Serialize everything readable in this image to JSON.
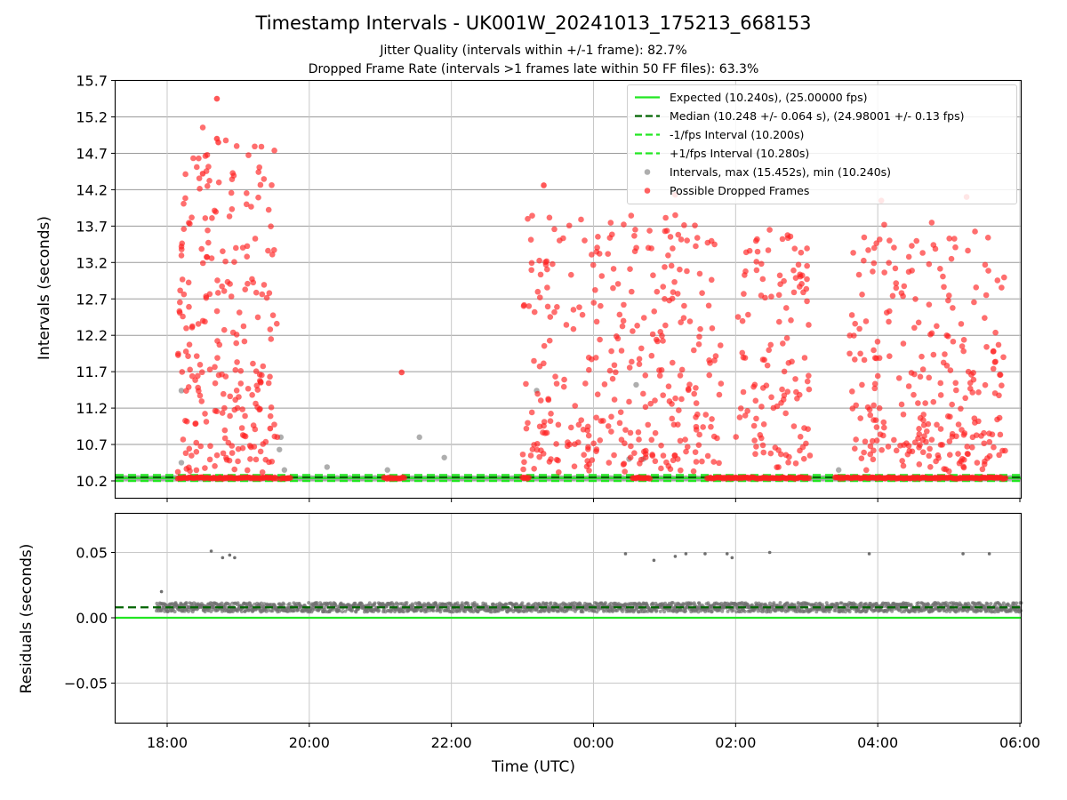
{
  "title": "Timestamp Intervals - UK001W_20241013_175213_668153",
  "subtitle_jitter": "Jitter Quality (intervals within +/-1 frame): 82.7%",
  "subtitle_dropped": "Dropped Frame Rate (intervals >1 frames late within 50 FF files): 63.3%",
  "colors": {
    "expected": "#00ee00",
    "median": "#006400",
    "intervals": "#a0a0a0",
    "dropped": "#ff2020",
    "residuals": "#707070"
  },
  "legend": [
    {
      "label": "Expected (10.240s), (25.00000 fps)",
      "style": "solid-line",
      "color": "#22e622"
    },
    {
      "label": "Median (10.248 +/- 0.064 s), (24.98001 +/- 0.13 fps)",
      "style": "dashed-line",
      "color": "#006400"
    },
    {
      "label": "-1/fps Interval (10.200s)",
      "style": "dashed-line",
      "color": "#22e622"
    },
    {
      "label": "+1/fps Interval (10.280s)",
      "style": "dashed-line",
      "color": "#22e622"
    },
    {
      "label": "Intervals, max (15.452s), min (10.240s)",
      "style": "marker",
      "color": "#a0a0a0"
    },
    {
      "label": "Possible Dropped Frames",
      "style": "marker",
      "color": "#ff2020"
    }
  ],
  "chart_data": [
    {
      "type": "scatter",
      "panel": "top",
      "title": "Timestamp Intervals - UK001W_20241013_175213_668153",
      "xlabel": "",
      "ylabel": "Intervals (seconds)",
      "ylim": [
        10.0,
        15.7
      ],
      "yticks": [
        10.2,
        10.7,
        11.2,
        11.7,
        12.2,
        12.7,
        13.2,
        13.7,
        14.2,
        14.7,
        15.2,
        15.7
      ],
      "ytick_labels": [
        "10.2",
        "10.7",
        "11.2",
        "11.7",
        "12.2",
        "12.7",
        "13.2",
        "13.7",
        "14.2",
        "14.7",
        "15.2",
        "15.7"
      ],
      "xlim_hours": [
        17.27,
        30.02
      ],
      "grid": true,
      "legend_position": "top-right",
      "reference_lines": {
        "expected": 10.24,
        "median": 10.248,
        "minus_1_fps": 10.2,
        "plus_1_fps": 10.28
      },
      "stats": {
        "max_interval": 15.452,
        "min_interval": 10.24
      },
      "clusters": [
        {
          "start": 18.15,
          "end": 19.55,
          "ymin": 10.3,
          "ymax": 15.45,
          "count": 240
        },
        {
          "start": 23.0,
          "end": 25.8,
          "ymin": 10.3,
          "ymax": 14.3,
          "count": 320
        },
        {
          "start": 26.0,
          "end": 27.05,
          "ymin": 10.3,
          "ymax": 14.1,
          "count": 120
        },
        {
          "start": 27.6,
          "end": 29.8,
          "ymin": 10.3,
          "ymax": 14.1,
          "count": 260
        }
      ],
      "baseline_dropped_bands": [
        [
          18.15,
          19.55
        ],
        [
          19.6,
          19.75
        ],
        [
          21.05,
          21.35
        ],
        [
          23.0,
          23.1
        ],
        [
          24.55,
          24.8
        ],
        [
          25.6,
          27.05
        ],
        [
          27.4,
          29.8
        ]
      ],
      "isolated_dropped": [
        {
          "x": 21.3,
          "y": 11.69
        },
        {
          "x": 19.45,
          "y": 10.92
        },
        {
          "x": 18.7,
          "y": 15.45
        },
        {
          "x": 18.7,
          "y": 14.9
        },
        {
          "x": 18.72,
          "y": 14.85
        },
        {
          "x": 18.5,
          "y": 14.42
        },
        {
          "x": 23.3,
          "y": 14.26
        },
        {
          "x": 25.15,
          "y": 14.13
        },
        {
          "x": 28.05,
          "y": 14.05
        },
        {
          "x": 29.25,
          "y": 14.1
        }
      ],
      "gray_points": [
        {
          "x": 18.2,
          "y": 11.44
        },
        {
          "x": 18.2,
          "y": 10.45
        },
        {
          "x": 19.6,
          "y": 10.8
        },
        {
          "x": 19.65,
          "y": 10.35
        },
        {
          "x": 19.58,
          "y": 10.63
        },
        {
          "x": 20.25,
          "y": 10.39
        },
        {
          "x": 21.1,
          "y": 10.35
        },
        {
          "x": 21.55,
          "y": 10.8
        },
        {
          "x": 21.9,
          "y": 10.52
        },
        {
          "x": 23.2,
          "y": 11.44
        },
        {
          "x": 24.6,
          "y": 11.52
        },
        {
          "x": 24.7,
          "y": 10.5
        },
        {
          "x": 24.5,
          "y": 10.5
        },
        {
          "x": 27.45,
          "y": 10.35
        }
      ]
    },
    {
      "type": "scatter",
      "panel": "bottom",
      "xlabel": "Time (UTC)",
      "ylabel": "Residuals (seconds)",
      "ylim": [
        -0.08,
        0.08
      ],
      "yticks": [
        0.05,
        0.0,
        -0.05
      ],
      "ytick_labels": [
        "0.05",
        "0.00",
        "−0.05"
      ],
      "xticks_hours": [
        18,
        20,
        22,
        24,
        26,
        28,
        30
      ],
      "xtick_labels": [
        "18:00",
        "20:00",
        "22:00",
        "00:00",
        "02:00",
        "04:00",
        "06:00"
      ],
      "grid": true,
      "expected_line": 0.0,
      "median_line": 0.008,
      "band": {
        "start": 17.85,
        "end": 30.02,
        "center": 0.008,
        "spread": 0.0035
      },
      "outliers": [
        {
          "x": 17.92,
          "y": 0.02
        },
        {
          "x": 18.62,
          "y": 0.051
        },
        {
          "x": 18.78,
          "y": 0.046
        },
        {
          "x": 18.88,
          "y": 0.048
        },
        {
          "x": 18.95,
          "y": 0.046
        },
        {
          "x": 24.45,
          "y": 0.049
        },
        {
          "x": 24.85,
          "y": 0.044
        },
        {
          "x": 25.15,
          "y": 0.047
        },
        {
          "x": 25.3,
          "y": 0.049
        },
        {
          "x": 25.57,
          "y": 0.049
        },
        {
          "x": 25.88,
          "y": 0.049
        },
        {
          "x": 25.95,
          "y": 0.046
        },
        {
          "x": 26.48,
          "y": 0.05
        },
        {
          "x": 27.88,
          "y": 0.049
        },
        {
          "x": 29.2,
          "y": 0.049
        },
        {
          "x": 29.57,
          "y": 0.049
        }
      ]
    }
  ]
}
